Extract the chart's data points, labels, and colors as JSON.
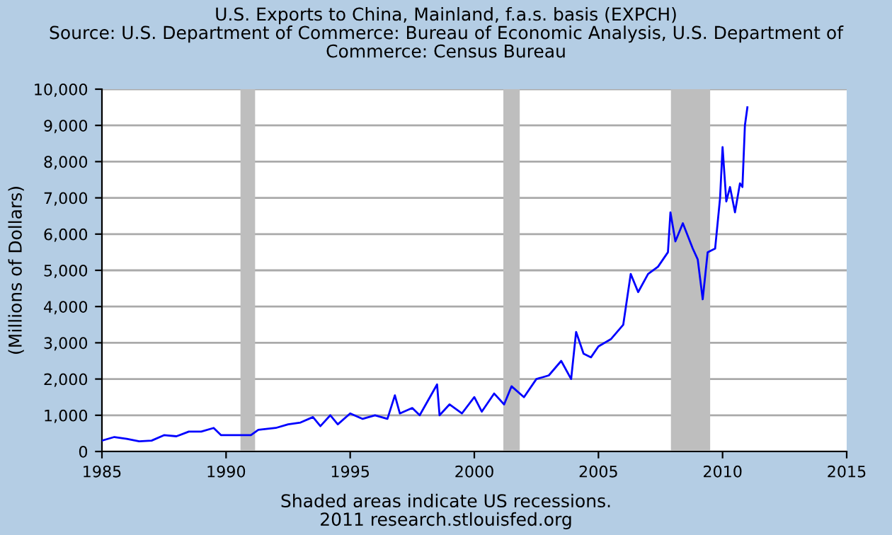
{
  "chart_data": {
    "type": "line",
    "title": "U.S. Exports to China, Mainland, f.a.s. basis (EXPCH)",
    "subtitle": "Source: U.S. Department of Commerce: Bureau of Economic Analysis, U.S. Department of\nCommerce: Census Bureau",
    "ylabel": "(Millions of Dollars)",
    "annotations": [
      "Shaded areas indicate US recessions.",
      "2011 research.stlouisfed.org"
    ],
    "series": [
      {
        "color": "#0000ff",
        "x": [
          1985,
          1985.5,
          1986,
          1986.5,
          1987,
          1987.5,
          1988,
          1988.5,
          1989,
          1989.5,
          1989.8,
          1990.5,
          1991,
          1991.3,
          1992,
          1992.5,
          1993,
          1993.5,
          1993.8,
          1994.2,
          1994.5,
          1995,
          1995.5,
          1996,
          1996.5,
          1996.8,
          1997,
          1997.5,
          1997.8,
          1998.5,
          1998.6,
          1999,
          1999.5,
          2000,
          2000.3,
          2000.8,
          2001.2,
          2001.5,
          2002,
          2002.5,
          2003,
          2003.5,
          2003.9,
          2004.1,
          2004.4,
          2004.7,
          2005,
          2005.5,
          2006,
          2006.3,
          2006.6,
          2007,
          2007.4,
          2007.8,
          2007.9,
          2008.1,
          2008.4,
          2008.8,
          2009,
          2009.2,
          2009.4,
          2009.7,
          2009.9,
          2010,
          2010.15,
          2010.3,
          2010.5,
          2010.7,
          2010.8,
          2010.9,
          2011.0
        ],
        "values": [
          300,
          400,
          350,
          280,
          300,
          450,
          420,
          550,
          550,
          650,
          450,
          450,
          450,
          600,
          650,
          750,
          800,
          950,
          700,
          1000,
          750,
          1050,
          900,
          1000,
          900,
          1550,
          1050,
          1200,
          1000,
          1850,
          1000,
          1300,
          1050,
          1500,
          1100,
          1600,
          1300,
          1800,
          1500,
          2000,
          2100,
          2500,
          2000,
          3300,
          2700,
          2600,
          2900,
          3100,
          3500,
          4900,
          4400,
          4900,
          5100,
          5500,
          6600,
          5800,
          6300,
          5600,
          5300,
          4200,
          5500,
          5600,
          7000,
          8400,
          6900,
          7300,
          6600,
          7400,
          7300,
          9000,
          9500
        ]
      }
    ],
    "xlim": [
      1985,
      2015
    ],
    "xticks": [
      1985,
      1990,
      1995,
      2000,
      2005,
      2010,
      2015
    ],
    "ylim": [
      0,
      10000
    ],
    "yticks": [
      0,
      {
        "value": 1000,
        "label": "1,000"
      },
      {
        "value": 2000,
        "label": "2,000"
      },
      {
        "value": 3000,
        "label": "3,000"
      },
      {
        "value": 4000,
        "label": "4,000"
      },
      {
        "value": 5000,
        "label": "5,000"
      },
      {
        "value": 6000,
        "label": "6,000"
      },
      {
        "value": 7000,
        "label": "7,000"
      },
      {
        "value": 8000,
        "label": "8,000"
      },
      {
        "value": 9000,
        "label": "9,000"
      },
      {
        "value": 10000,
        "label": "10,000"
      }
    ],
    "bands": [
      {
        "axis": "x",
        "from": 1990.58,
        "to": 1991.17,
        "color": "#bebebe"
      },
      {
        "axis": "x",
        "from": 2001.17,
        "to": 2001.83,
        "color": "#bebebe"
      },
      {
        "axis": "x",
        "from": 2007.92,
        "to": 2009.5,
        "color": "#bebebe"
      }
    ],
    "grid": "y",
    "marker": "none",
    "line_style": "solid"
  }
}
